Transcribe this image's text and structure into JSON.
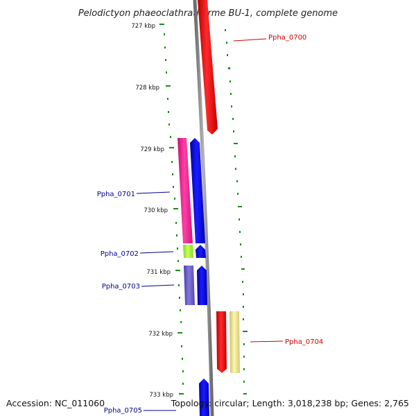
{
  "title": "Pelodictyon phaeoclathratiforme BU-1, complete genome",
  "accession": "Accession: NC_011060",
  "topology": "Topology: circular; Length: 3,018,238 bp; Genes: 2,765",
  "colors": {
    "forward_label": "#cc0000",
    "reverse_label": "#00008b",
    "tick": "#1a8a1a",
    "backbone": "#888888"
  },
  "ticks": [
    {
      "label": "727 kbp"
    },
    {
      "label": "728 kbp"
    },
    {
      "label": "729 kbp"
    },
    {
      "label": "730 kbp"
    },
    {
      "label": "731 kbp"
    },
    {
      "label": "732 kbp"
    },
    {
      "label": "733 kbp"
    }
  ],
  "genes": [
    {
      "label": "Ppha_0700",
      "strand": "forward",
      "color": "#ff0000"
    },
    {
      "label": "Ppha_0701",
      "strand": "reverse",
      "color": "#ff1493"
    },
    {
      "label": "Ppha_0702",
      "strand": "reverse",
      "color": "#adff2f"
    },
    {
      "label": "Ppha_0703",
      "strand": "reverse",
      "color": "#6a5acd"
    },
    {
      "label": "Ppha_0704",
      "strand": "forward",
      "color": "#f0e68c"
    },
    {
      "label": "Ppha_0705",
      "strand": "reverse",
      "color": "#0000ff"
    }
  ],
  "orfs": [
    {
      "color": "#0000ff"
    },
    {
      "color": "#0000ff"
    },
    {
      "color": "#0000ff"
    },
    {
      "color": "#ff0000"
    }
  ]
}
